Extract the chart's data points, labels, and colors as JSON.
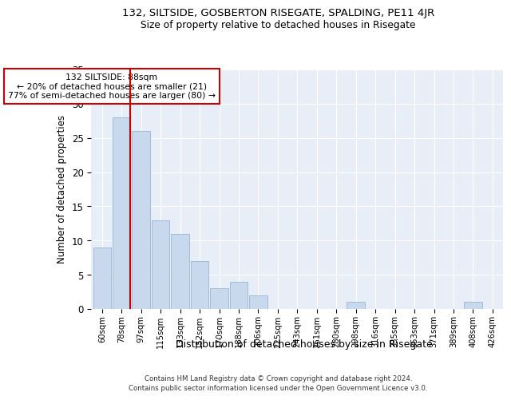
{
  "title": "132, SILTSIDE, GOSBERTON RISEGATE, SPALDING, PE11 4JR",
  "subtitle": "Size of property relative to detached houses in Risegate",
  "xlabel": "Distribution of detached houses by size in Risegate",
  "ylabel": "Number of detached properties",
  "categories": [
    "60sqm",
    "78sqm",
    "97sqm",
    "115sqm",
    "133sqm",
    "152sqm",
    "170sqm",
    "188sqm",
    "206sqm",
    "225sqm",
    "243sqm",
    "261sqm",
    "280sqm",
    "298sqm",
    "316sqm",
    "335sqm",
    "353sqm",
    "371sqm",
    "389sqm",
    "408sqm",
    "426sqm"
  ],
  "values": [
    9,
    28,
    26,
    13,
    11,
    7,
    3,
    4,
    2,
    0,
    0,
    0,
    0,
    1,
    0,
    0,
    0,
    0,
    0,
    1,
    0
  ],
  "bar_color": "#c8d9ee",
  "bar_edge_color": "#a0bcd8",
  "vline_color": "#cc0000",
  "vline_x_idx": 1,
  "annotation_text": "132 SILTSIDE: 88sqm\n← 20% of detached houses are smaller (21)\n77% of semi-detached houses are larger (80) →",
  "annotation_box_facecolor": "#ffffff",
  "annotation_box_edgecolor": "#cc0000",
  "ylim": [
    0,
    35
  ],
  "yticks": [
    0,
    5,
    10,
    15,
    20,
    25,
    30,
    35
  ],
  "fig_bg_color": "#ffffff",
  "ax_bg_color": "#e8eef8",
  "grid_color": "#ffffff",
  "footer1": "Contains HM Land Registry data © Crown copyright and database right 2024.",
  "footer2": "Contains public sector information licensed under the Open Government Licence v3.0."
}
